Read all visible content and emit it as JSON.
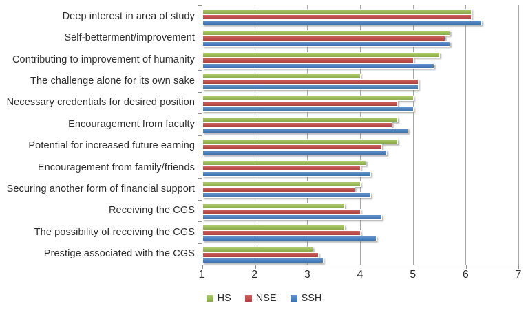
{
  "chart_data": {
    "type": "bar",
    "orientation": "horizontal",
    "title": "",
    "xlabel": "",
    "ylabel": "",
    "xlim": [
      1,
      7
    ],
    "x_ticks": [
      1,
      2,
      3,
      4,
      5,
      6,
      7
    ],
    "grid": true,
    "legend_position": "bottom",
    "categories": [
      "Deep interest in area of study",
      "Self-betterment/improvement",
      "Contributing to improvement of humanity",
      "The challenge alone for its own sake",
      "Necessary credentials for desired position",
      "Encouragement from faculty",
      "Potential for increased future earning",
      "Encouragement from family/friends",
      "Securing another form of financial support",
      "Receiving the CGS",
      "The possibility of receiving the CGS",
      "Prestige associated with the CGS"
    ],
    "series": [
      {
        "name": "HS",
        "color": "#9bbb59",
        "color_light": "#aecb70",
        "color_dark": "#8aa84e",
        "values": [
          6.1,
          5.7,
          5.5,
          4.0,
          5.0,
          4.7,
          4.7,
          4.1,
          4.0,
          3.7,
          3.7,
          3.1
        ]
      },
      {
        "name": "NSE",
        "color": "#c0504d",
        "color_light": "#cd6663",
        "color_dark": "#ab4441",
        "values": [
          6.1,
          5.6,
          5.0,
          5.1,
          4.7,
          4.6,
          4.4,
          4.0,
          3.9,
          4.0,
          4.0,
          3.2
        ]
      },
      {
        "name": "SSH",
        "color": "#4f81bd",
        "color_light": "#6694ca",
        "color_dark": "#4372a8",
        "values": [
          6.3,
          5.7,
          5.4,
          5.1,
          5.0,
          4.9,
          4.5,
          4.2,
          4.2,
          4.4,
          4.3,
          3.3
        ]
      }
    ],
    "colors": {
      "gridline": "#a6a6a6",
      "axis": "#8f8f8f",
      "text": "#2b2b2b",
      "background": "#ffffff"
    }
  }
}
